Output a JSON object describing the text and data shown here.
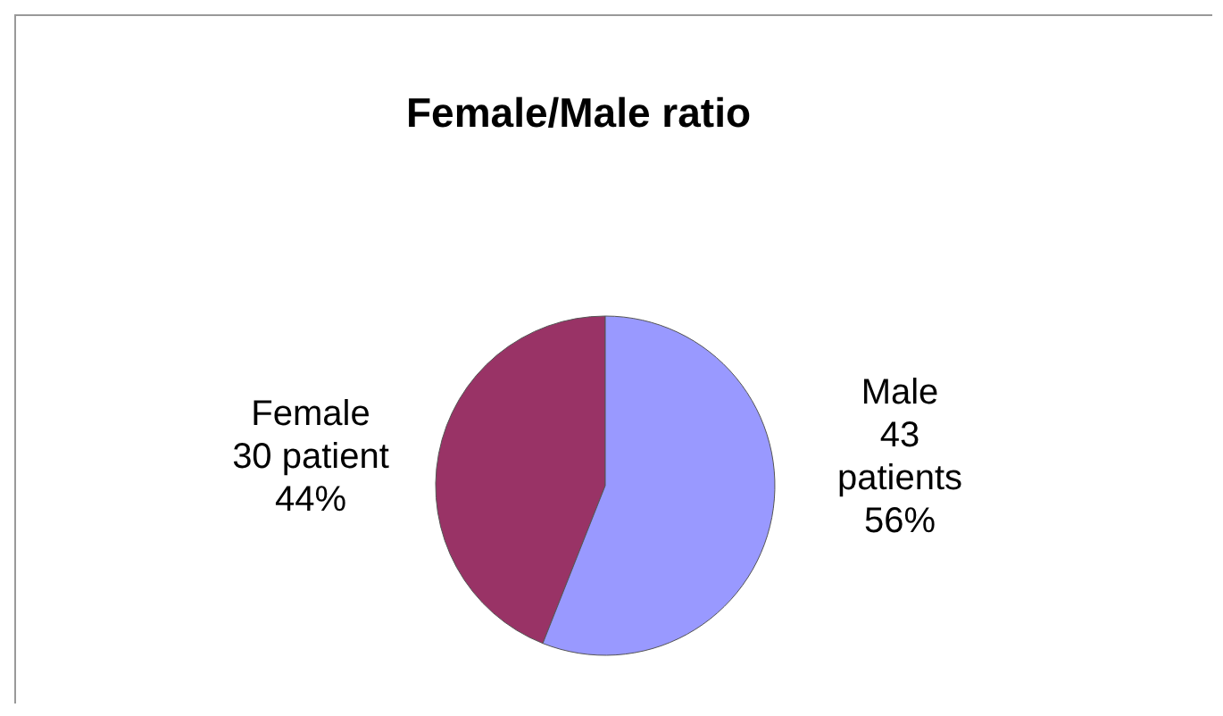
{
  "chart_data": {
    "type": "pie",
    "title": "Female/Male ratio",
    "categories": [
      "Female",
      "Male"
    ],
    "values": [
      44,
      56
    ],
    "colors": [
      "#993366",
      "#9999ff"
    ],
    "value_labels": [
      "30 patient\n44%",
      "43\npatients\n56%"
    ],
    "legend": false
  }
}
